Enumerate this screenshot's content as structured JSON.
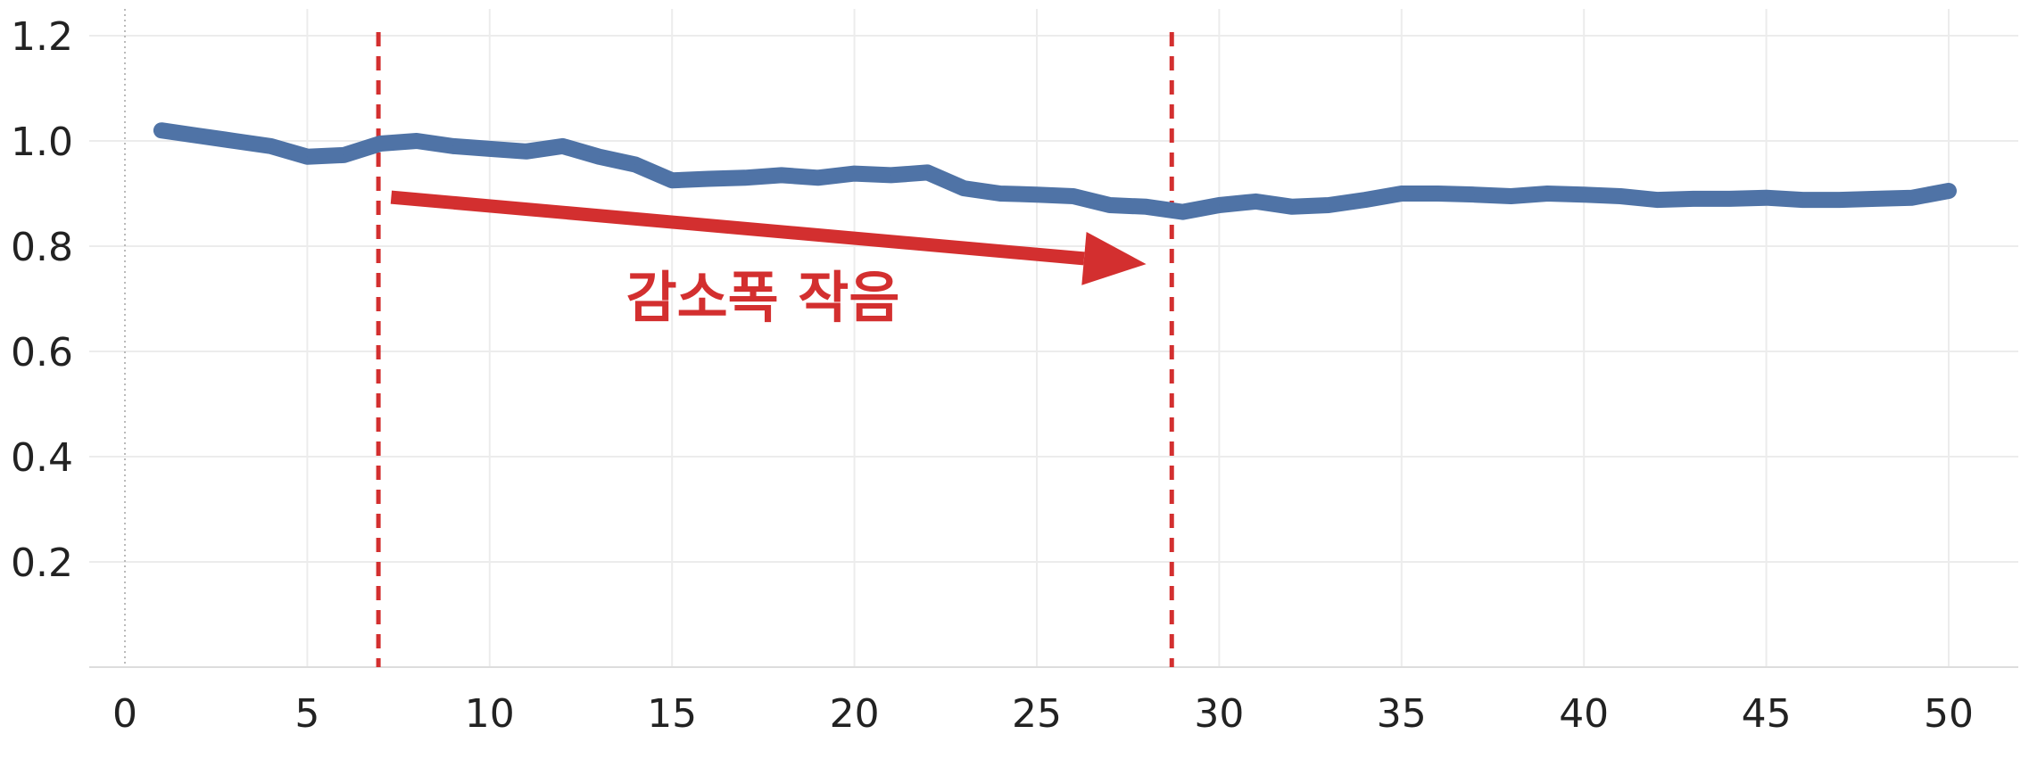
{
  "chart_data": {
    "type": "line",
    "xlim": [
      0,
      51
    ],
    "ylim": [
      0,
      1.2
    ],
    "xticks": [
      "0",
      "5",
      "10",
      "15",
      "20",
      "25",
      "30",
      "35",
      "40",
      "45",
      "50"
    ],
    "yticks": [
      "0.2",
      "0.4",
      "0.6",
      "0.8",
      "1.0",
      "1.2"
    ],
    "grid": true,
    "series": [
      {
        "color": "#4f73a6",
        "x": [
          1,
          2,
          3,
          4,
          5,
          6,
          7,
          8,
          9,
          10,
          11,
          12,
          13,
          14,
          15,
          16,
          17,
          18,
          19,
          20,
          21,
          22,
          23,
          24,
          25,
          26,
          27,
          28,
          29,
          30,
          31,
          32,
          33,
          34,
          35,
          36,
          37,
          38,
          39,
          40,
          41,
          42,
          43,
          44,
          45,
          46,
          47,
          48,
          49,
          50
        ],
        "y": [
          1.02,
          1.01,
          1.0,
          0.99,
          0.97,
          0.973,
          0.995,
          1.0,
          0.99,
          0.985,
          0.98,
          0.99,
          0.97,
          0.955,
          0.925,
          0.928,
          0.93,
          0.935,
          0.93,
          0.938,
          0.935,
          0.94,
          0.91,
          0.9,
          0.898,
          0.895,
          0.878,
          0.875,
          0.865,
          0.878,
          0.885,
          0.875,
          0.878,
          0.888,
          0.9,
          0.9,
          0.898,
          0.895,
          0.9,
          0.898,
          0.895,
          0.888,
          0.89,
          0.89,
          0.892,
          0.888,
          0.888,
          0.89,
          0.892,
          0.905
        ]
      }
    ],
    "reference_lines": [
      {
        "axis": "x",
        "value": 6.95,
        "color": "#d32f2f",
        "style": "dashed"
      },
      {
        "axis": "x",
        "value": 28.7,
        "color": "#d32f2f",
        "style": "dashed"
      }
    ],
    "annotations": [
      {
        "type": "arrow",
        "color": "#d32f2f",
        "from": {
          "x": 7.3,
          "y": 0.893
        },
        "to": {
          "x": 28.0,
          "y": 0.766
        }
      },
      {
        "type": "text",
        "text": "감소폭 작음",
        "color": "#d32f2f"
      }
    ]
  }
}
